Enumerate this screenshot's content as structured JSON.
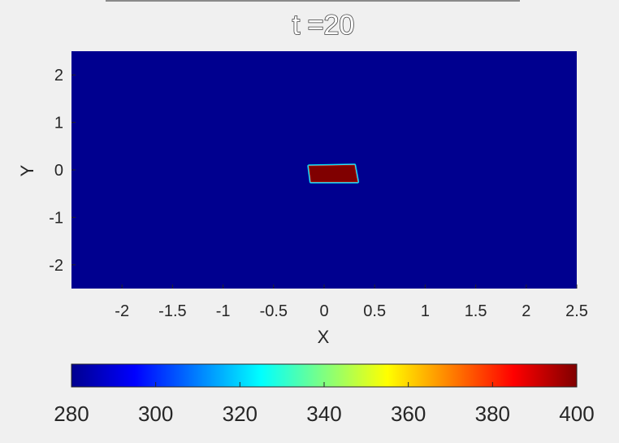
{
  "chart_data": {
    "type": "heatmap",
    "title": "t =20",
    "xlabel": "X",
    "ylabel": "Y",
    "xlim": [
      -2.5,
      2.5
    ],
    "ylim": [
      -2.5,
      2.5
    ],
    "xticks": [
      "-2",
      "-1.5",
      "-1",
      "-0.5",
      "0",
      "0.5",
      "1",
      "1.5",
      "2",
      "2.5"
    ],
    "yticks": [
      "2",
      "1",
      "0",
      "-1",
      "-2"
    ],
    "colormap": "jet",
    "background_value": 280,
    "hot_region": {
      "value": 400,
      "corners": [
        [
          -0.15,
          0.08
        ],
        [
          0.3,
          0.1
        ],
        [
          0.33,
          -0.25
        ],
        [
          -0.13,
          -0.25
        ]
      ]
    },
    "colorbar": {
      "orientation": "horizontal",
      "range": [
        280,
        400
      ],
      "ticks": [
        "280",
        "300",
        "320",
        "340",
        "360",
        "380",
        "400"
      ],
      "colors": [
        "#00008f",
        "#0000ff",
        "#0080ff",
        "#00ffff",
        "#80ff80",
        "#ffff00",
        "#ff8000",
        "#ff0000",
        "#800000"
      ]
    }
  }
}
